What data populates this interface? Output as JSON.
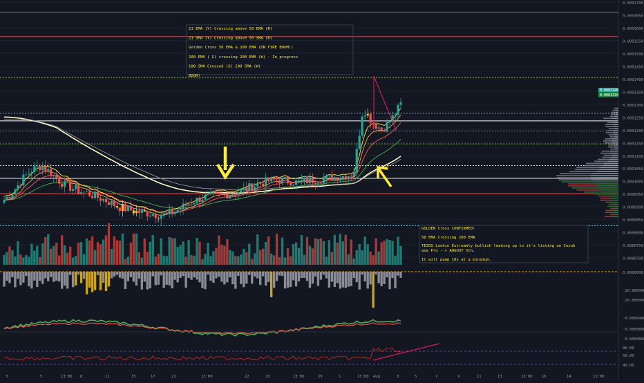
{
  "chart_data": [
    {
      "type": "candlestick",
      "title": "",
      "xlabel": "",
      "ylabel": "",
      "x_ticks": [
        "3",
        "5",
        "13:00",
        "8",
        "11",
        "15",
        "17",
        "21",
        "13:00",
        "22",
        "26",
        "13:00",
        "29",
        "1",
        "13:00",
        "Aug",
        "3",
        "5",
        "7",
        "9",
        "11",
        "13",
        "13:00",
        "16",
        "14",
        "13:00"
      ],
      "y_ticks": [
        "0.0001700",
        "0.0001650",
        "0.0001600",
        "0.0001550",
        "0.0001500",
        "0.0001450",
        "0.0001400",
        "0.0001350",
        "0.0001300",
        "0.0001250",
        "0.0001200",
        "0.0001150",
        "0.0001100",
        "0.0001050",
        "0.0001000",
        "0.0000950",
        "0.0000900",
        "0.0000850",
        "0.0000800",
        "0.0000750",
        "0.0000700"
      ],
      "ylim": [
        7e-05,
        0.00017
      ],
      "last_price_labels": [
        "0.0001340",
        "0.0001310"
      ],
      "price_samples": [
        9.25e-05,
        9.6e-05,
        0.000101,
        0.0001045,
        0.000106,
        0.000103,
        9.95e-05,
        9.75e-05,
        9.6e-05,
        9.5e-05,
        9.35e-05,
        9.2e-05,
        9e-05,
        8.9e-05,
        8.8e-05,
        8.75e-05,
        8.7e-05,
        8.65e-05,
        8.8e-05,
        9e-05,
        9.2e-05,
        9.35e-05,
        9.4e-05,
        9.45e-05,
        9.5e-05,
        9.6e-05,
        9.75e-05,
        9.9e-05,
        0.0001,
        0.0001005,
        0.0001,
        9.95e-05,
        0.0001,
        0.0001005,
        0.000101,
        0.0001015,
        0.000102,
        0.000103,
        0.0001285,
        0.000123,
        0.00012,
        0.000124,
        0.00013
      ],
      "horizontal_lines": [
        {
          "price": 0.000166,
          "color": "#5d9c59",
          "style": "solid"
        },
        {
          "price": 0.0001565,
          "color": "#ef5350",
          "style": "solid"
        },
        {
          "price": 0.0001405,
          "color": "#8bc34a",
          "style": "dotted"
        },
        {
          "price": 0.0001265,
          "color": "#7ecbe1",
          "style": "dotted"
        },
        {
          "price": 0.0001235,
          "color": "#ffffff",
          "style": "solid"
        },
        {
          "price": 0.0001195,
          "color": "#3b8fd6",
          "style": "dotted"
        },
        {
          "price": 0.0001145,
          "color": "#8bc34a",
          "style": "dotted"
        },
        {
          "price": 0.000106,
          "color": "#ffeb3b",
          "style": "dotted"
        },
        {
          "price": 0.000101,
          "color": "#e8e8e8",
          "style": "solid"
        },
        {
          "price": 9.5e-05,
          "color": "#ef5350",
          "style": "solid"
        },
        {
          "price": 8.25e-05,
          "color": "#7ecbe1",
          "style": "dotted"
        }
      ],
      "annotations": [
        {
          "lines": [
            "21 EMA (Y) Crossing above 50 EMA (R)",
            "21 SMA (Y)  Crossing above 50 SMA (R)",
            "Golden Cross 50 EMA & 200 EMA (ON FIRE BOOM!)",
            "100 EMA ( G) crossing 200 EMA (W) - In progress",
            "100 SMA Crossed (G) 200 SMA (W)",
            "BOOM!"
          ]
        },
        {
          "lines": [
            "GOLDEN Cross CONFIRMED!",
            "50 EMA Crossing 200 EMA",
            "TEZOS Lookin Extremely bullish leading up to it's listing on Coinbase Pro --> AUGUST 5th.",
            "It will pump 10x at a minimum."
          ]
        }
      ]
    },
    {
      "type": "bar",
      "title": "",
      "y_ticks": [
        "0.0000000",
        "-10.0000000",
        "-20.0000000"
      ]
    },
    {
      "type": "area",
      "title": "",
      "y_ticks": [
        "-0.0000400",
        "-0.0000800",
        "-0.0000800"
      ]
    },
    {
      "type": "line",
      "title": "",
      "y_ticks": [
        "80.00",
        "60.00",
        "40.00"
      ]
    }
  ],
  "colors": {
    "background": "#131722",
    "up": "#26a69a",
    "down": "#ef5350",
    "ema21": "#ffeb3b",
    "ema50": "#ef5350",
    "ema100": "#4caf50",
    "ema200": "#fffde7",
    "annotation_text": "#ffeb3b",
    "arrow": "#ffeb3b"
  }
}
